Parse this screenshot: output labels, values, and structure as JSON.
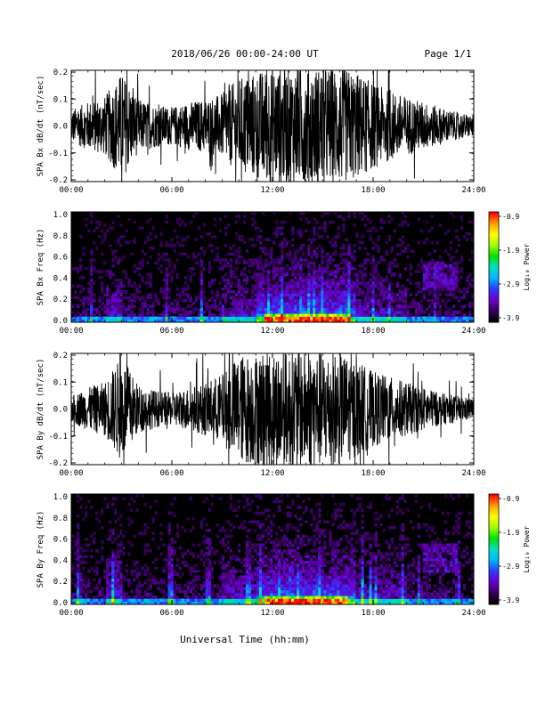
{
  "header": {
    "title": "2018/06/26  00:00-24:00 UT",
    "page": "Page 1/1"
  },
  "footer": {
    "xlabel": "Universal Time (hh:mm)"
  },
  "colorbar": {
    "label": "Log₁₀ Power",
    "ticks": [
      "-0.9",
      "-1.9",
      "-2.9",
      "-3.9"
    ],
    "range": [
      -3.9,
      -0.9
    ],
    "colormap": [
      "#000000",
      "#3a0060",
      "#6a00d0",
      "#2a3cff",
      "#00b8ff",
      "#00e0c0",
      "#00e000",
      "#a0ff00",
      "#ffff00",
      "#ffa000",
      "#ff0000"
    ]
  },
  "chart_data": [
    {
      "type": "line",
      "ylabel": "SPA Bx dB/dt (nT/sec)",
      "xlim": [
        0,
        24
      ],
      "ylim": [
        -0.2,
        0.2
      ],
      "xticks": [
        "00:00",
        "06:00",
        "12:00",
        "18:00",
        "24:00"
      ],
      "yticks": [
        "0.2",
        "0.1",
        "0.0",
        "-0.1",
        "-0.2"
      ],
      "envelope_hours": [
        0,
        1,
        2,
        3,
        4,
        5,
        6,
        7,
        8,
        9,
        10,
        11,
        12,
        13,
        14,
        15,
        16,
        17,
        18,
        19,
        20,
        21,
        22,
        23,
        24
      ],
      "envelope_amplitude": [
        0.06,
        0.09,
        0.11,
        0.2,
        0.1,
        0.08,
        0.07,
        0.09,
        0.1,
        0.12,
        0.18,
        0.2,
        0.22,
        0.22,
        0.22,
        0.22,
        0.22,
        0.2,
        0.16,
        0.13,
        0.11,
        0.09,
        0.07,
        0.05,
        0.04
      ],
      "color": "#000000"
    },
    {
      "type": "heatmap",
      "ylabel": "SPA Bx Freq (Hz)",
      "xlim": [
        0,
        24
      ],
      "ylim": [
        0,
        1.0
      ],
      "xticks": [
        "00:00",
        "06:00",
        "12:00",
        "18:00",
        "24:00"
      ],
      "yticks": [
        "1.0",
        "0.8",
        "0.6",
        "0.4",
        "0.2",
        "0.0"
      ],
      "zlabel": "Log₁₀ Power",
      "zlim": [
        -3.9,
        -0.9
      ]
    },
    {
      "type": "line",
      "ylabel": "SPA By dB/dt (nT/sec)",
      "xlim": [
        0,
        24
      ],
      "ylim": [
        -0.2,
        0.2
      ],
      "xticks": [
        "00:00",
        "06:00",
        "12:00",
        "18:00",
        "24:00"
      ],
      "yticks": [
        "0.2",
        "0.1",
        "0.0",
        "-0.1",
        "-0.2"
      ],
      "envelope_hours": [
        0,
        1,
        2,
        3,
        4,
        5,
        6,
        7,
        8,
        9,
        10,
        11,
        12,
        13,
        14,
        15,
        16,
        17,
        18,
        19,
        20,
        21,
        22,
        23,
        24
      ],
      "envelope_amplitude": [
        0.05,
        0.08,
        0.1,
        0.2,
        0.09,
        0.07,
        0.06,
        0.08,
        0.1,
        0.13,
        0.2,
        0.21,
        0.22,
        0.22,
        0.22,
        0.22,
        0.21,
        0.18,
        0.14,
        0.12,
        0.1,
        0.08,
        0.06,
        0.05,
        0.04
      ],
      "color": "#000000"
    },
    {
      "type": "heatmap",
      "ylabel": "SPA By Freq (Hz)",
      "xlim": [
        0,
        24
      ],
      "ylim": [
        0,
        1.0
      ],
      "xticks": [
        "00:00",
        "06:00",
        "12:00",
        "18:00",
        "24:00"
      ],
      "yticks": [
        "1.0",
        "0.8",
        "0.6",
        "0.4",
        "0.2",
        "0.0"
      ],
      "zlabel": "Log₁₀ Power",
      "zlim": [
        -3.9,
        -0.9
      ]
    }
  ]
}
